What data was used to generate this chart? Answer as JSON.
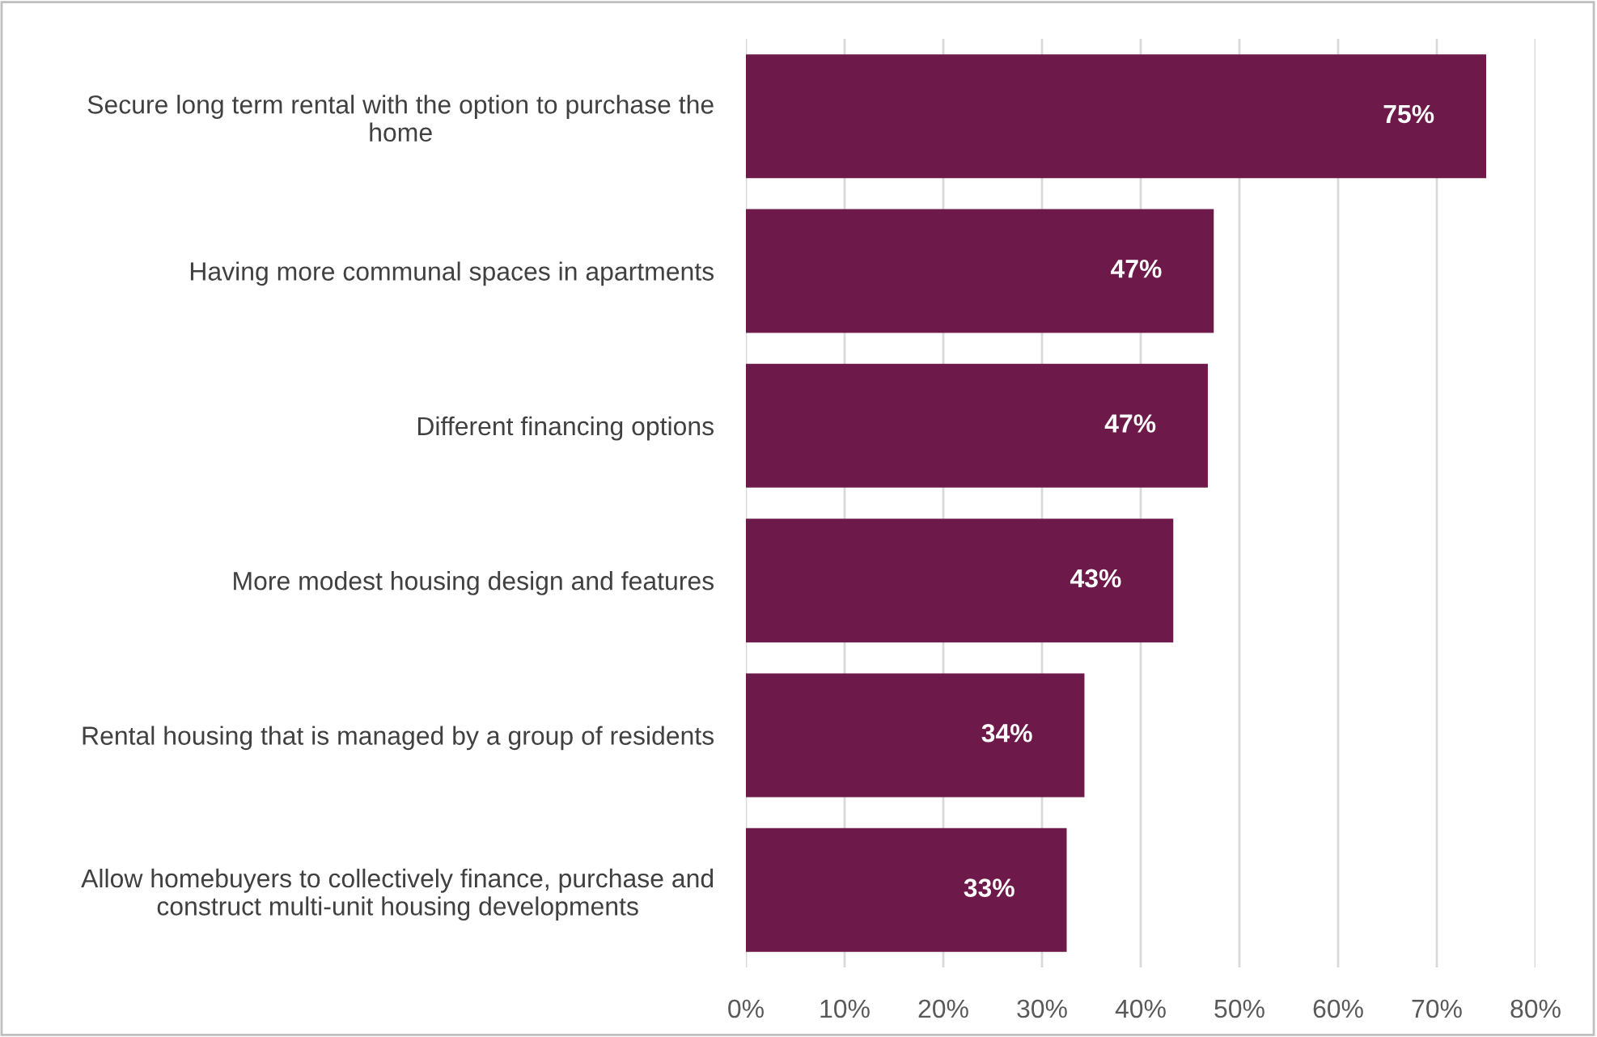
{
  "chart_data": {
    "type": "bar",
    "orientation": "horizontal",
    "categories": [
      "Secure long term rental with the option to purchase the\nhome",
      "Having more communal spaces in apartments",
      "Different financing options",
      "More modest housing design and features",
      "Rental housing that is managed by a group of residents",
      "Allow homebuyers to collectively finance, purchase and\nconstruct multi-unit housing developments"
    ],
    "values": [
      75,
      47.4,
      46.8,
      43.3,
      34.3,
      32.5
    ],
    "value_labels": [
      "75%",
      "47%",
      "47%",
      "43%",
      "34%",
      "33%"
    ],
    "color": "#6d1a4b",
    "xlim": [
      0,
      80
    ],
    "xticks": [
      {
        "value": 0,
        "label": "0%"
      },
      {
        "value": 10,
        "label": "10%"
      },
      {
        "value": 20,
        "label": "20%"
      },
      {
        "value": 30,
        "label": "30%"
      },
      {
        "value": 40,
        "label": "40%"
      },
      {
        "value": 50,
        "label": "50%"
      },
      {
        "value": 60,
        "label": "60%"
      },
      {
        "value": 70,
        "label": "70%"
      },
      {
        "value": 80,
        "label": "80%"
      }
    ],
    "grid": "x"
  }
}
